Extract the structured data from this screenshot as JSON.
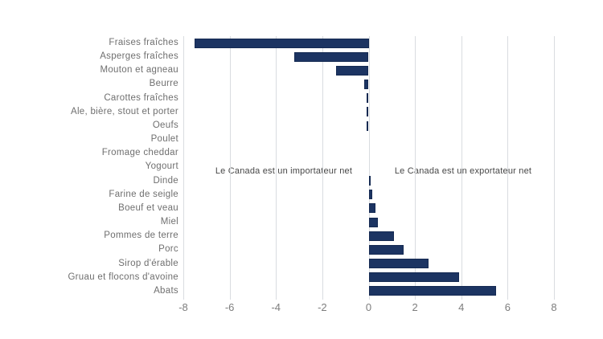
{
  "chart_data": {
    "type": "bar",
    "orientation": "horizontal",
    "title": "",
    "xlabel": "",
    "ylabel": "",
    "categories": [
      "Fraises fraîches",
      "Asperges fraîches",
      "Mouton et agneau",
      "Beurre",
      "Carottes fraîches",
      "Ale, bière, stout et porter",
      "Oeufs",
      "Poulet",
      "Fromage cheddar",
      "Yogourt",
      "Dinde",
      "Farine de seigle",
      "Boeuf et veau",
      "Miel",
      "Pommes de terre",
      "Porc",
      "Sirop d'érable",
      "Gruau et flocons d'avoine",
      "Abats"
    ],
    "values": [
      -7.5,
      -3.2,
      -1.4,
      -0.2,
      -0.1,
      -0.1,
      -0.1,
      0,
      0,
      0,
      0.1,
      0.15,
      0.3,
      0.4,
      1.1,
      1.5,
      2.6,
      3.9,
      5.5
    ],
    "xlim": [
      -8,
      8
    ],
    "x_ticks": [
      -8,
      -6,
      -4,
      -2,
      0,
      2,
      4,
      6,
      8
    ],
    "grid": true,
    "legend": "none",
    "annotations": [
      "Le Canada est un importateur net",
      "Le Canada est un exportateur net"
    ],
    "bar_color": "#1c3462",
    "gridline_color": "#d9dce0",
    "label_color": "#6f6f6f",
    "tick_color": "#7d7d7d",
    "annotation_color": "#474747",
    "background_color": "#ffffff"
  }
}
